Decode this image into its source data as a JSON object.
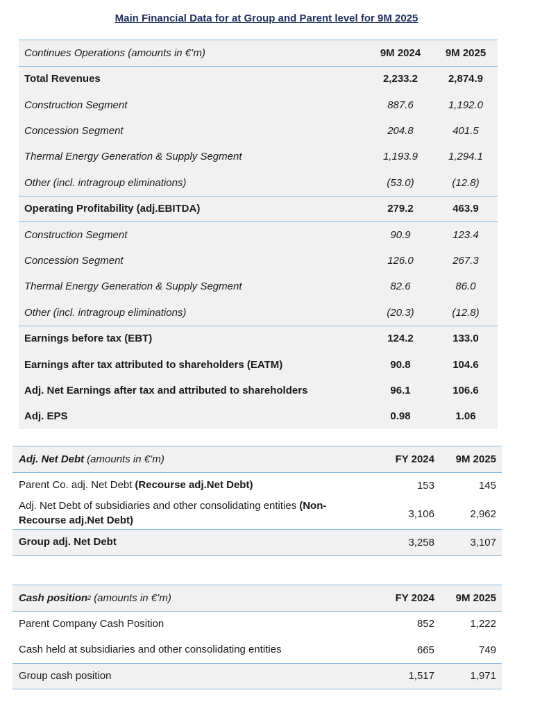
{
  "title": "Main Financial Data for at Group and Parent level for 9M 2025",
  "table1": {
    "header": [
      "Continues Operations (amounts in €’m)",
      "9M 2024",
      "9M 2025"
    ],
    "rows": [
      [
        "Total Revenues",
        "2,233.2",
        "2,874.9"
      ],
      [
        "Construction Segment",
        "887.6",
        "1,192.0"
      ],
      [
        "Concession Segment",
        "204.8",
        "401.5"
      ],
      [
        "Thermal Energy Generation & Supply Segment",
        "1,193.9",
        "1,294.1"
      ],
      [
        "Other (incl. intragroup eliminations)",
        "(53.0)",
        "(12.8)"
      ],
      [
        "Operating Profitability (adj.EBITDA)",
        "279.2",
        "463.9"
      ],
      [
        "Construction Segment",
        "90.9",
        "123.4"
      ],
      [
        "Concession Segment",
        "126.0",
        "267.3"
      ],
      [
        "Thermal Energy Generation & Supply Segment",
        "82.6",
        "86.0"
      ],
      [
        "Other (incl. intragroup eliminations)",
        "(20.3)",
        "(12.8)"
      ],
      [
        "Earnings before tax (EBT)",
        "124.2",
        "133.0"
      ],
      [
        "Earnings after tax attributed to shareholders (EATM)",
        "90.8",
        "104.6"
      ],
      [
        "Adj. Net Earnings after tax and attributed to shareholders",
        "96.1",
        "106.6"
      ],
      [
        "Adj. EPS",
        "0.98",
        "1.06"
      ]
    ]
  },
  "table2": {
    "header": {
      "label": [
        "Adj. Net Debt",
        "(amounts in €’m)"
      ],
      "columns": [
        "FY 2024",
        "9M 2025"
      ]
    },
    "rows": [
      {
        "label": [
          "Parent Co. adj. Net Debt",
          "(Recourse adj.Net Debt)"
        ],
        "values": [
          "153",
          "145"
        ]
      },
      {
        "label": [
          "Adj. Net Debt of subsidiaries and other consolidating entities",
          "(Non-Recourse adj.Net Debt)"
        ],
        "values": [
          "3,106",
          "2,962"
        ]
      },
      {
        "label": [
          "Group adj. Net Debt"
        ],
        "values": [
          "3,258",
          "3,107"
        ]
      }
    ]
  },
  "table3": {
    "header": {
      "label": [
        "Cash position",
        "2",
        "(amounts in €’m)"
      ],
      "columns": [
        "FY 2024",
        "9M 2025"
      ]
    },
    "rows": [
      {
        "label": [
          "Parent Company Cash Position"
        ],
        "values": [
          "852",
          "1,222"
        ]
      },
      {
        "label": [
          "Cash held at subsidiaries and other consolidating entities"
        ],
        "values": [
          "665",
          "749"
        ]
      },
      {
        "label": [
          "Group cash position"
        ],
        "values": [
          "1,517",
          "1,971"
        ]
      }
    ]
  }
}
